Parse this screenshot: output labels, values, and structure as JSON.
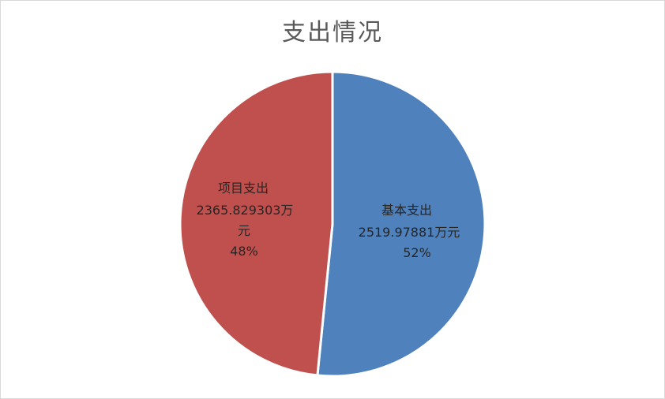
{
  "chart_data": {
    "type": "pie",
    "title": "支出情况",
    "slices": [
      {
        "name": "基本支出",
        "value": 2519.97881,
        "unit": "万元",
        "value_text": "2519.97881万元",
        "percent_text": "52%",
        "color": "#4F81BD"
      },
      {
        "name": "项目支出",
        "value": 2365.829303,
        "unit": "万元",
        "value_text": "2365.829303万元",
        "value_text_line1": "2365.829303万",
        "value_text_line2": "元",
        "percent_text": "48%",
        "color": "#C0504D"
      }
    ],
    "start_angle": "12 o'clock",
    "direction": "clockwise",
    "legend": "none",
    "data_labels": "inside"
  }
}
